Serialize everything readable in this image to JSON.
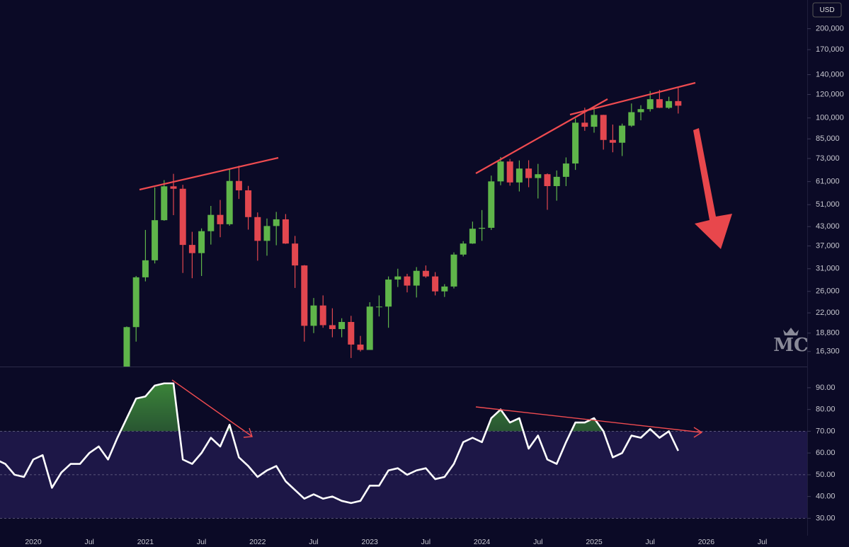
{
  "chart_data": [
    {
      "type": "candlestick",
      "unit": "USD",
      "watermark": "MC",
      "log_scale": true,
      "up_color": "#5fb54a",
      "down_color": "#e2474f",
      "ylim": [
        14500,
        250000
      ],
      "yticks": [
        {
          "value": 200000,
          "label": "200,000"
        },
        {
          "value": 170000,
          "label": "170,000"
        },
        {
          "value": 140000,
          "label": "140,000"
        },
        {
          "value": 120000,
          "label": "120,000"
        },
        {
          "value": 100000,
          "label": "100,000"
        },
        {
          "value": 85000,
          "label": "85,000"
        },
        {
          "value": 73000,
          "label": "73,000"
        },
        {
          "value": 61000,
          "label": "61,000"
        },
        {
          "value": 51000,
          "label": "51,000"
        },
        {
          "value": 43000,
          "label": "43,000"
        },
        {
          "value": 37000,
          "label": "37,000"
        },
        {
          "value": 31000,
          "label": "31,000"
        },
        {
          "value": 26000,
          "label": "26,000"
        },
        {
          "value": 22000,
          "label": "22,000"
        },
        {
          "value": 18800,
          "label": "18,800"
        },
        {
          "value": 16300,
          "label": "16,300"
        }
      ],
      "x": [
        "2020-11",
        "2020-12",
        "2021-01",
        "2021-02",
        "2021-03",
        "2021-04",
        "2021-05",
        "2021-06",
        "2021-07",
        "2021-08",
        "2021-09",
        "2021-10",
        "2021-11",
        "2021-12",
        "2022-01",
        "2022-02",
        "2022-03",
        "2022-04",
        "2022-05",
        "2022-06",
        "2022-07",
        "2022-08",
        "2022-09",
        "2022-10",
        "2022-11",
        "2022-12",
        "2023-01",
        "2023-02",
        "2023-03",
        "2023-04",
        "2023-05",
        "2023-06",
        "2023-07",
        "2023-08",
        "2023-09",
        "2023-10",
        "2023-11",
        "2023-12",
        "2024-01",
        "2024-02",
        "2024-03",
        "2024-04",
        "2024-05",
        "2024-06",
        "2024-07",
        "2024-08",
        "2024-09",
        "2024-10",
        "2024-11",
        "2024-12",
        "2025-01",
        "2025-02",
        "2025-03",
        "2025-04",
        "2025-05",
        "2025-06",
        "2025-07",
        "2025-08",
        "2025-09",
        "2025-10"
      ],
      "open": [
        13800,
        19700,
        29000,
        33100,
        45200,
        58800,
        57700,
        37300,
        35000,
        41500,
        47100,
        43800,
        61300,
        57000,
        46300,
        38500,
        43200,
        45500,
        37700,
        31800,
        19900,
        23300,
        20000,
        19400,
        20500,
        17200,
        16500,
        23100,
        23100,
        28500,
        29200,
        27200,
        30500,
        29200,
        26000,
        27000,
        34600,
        37700,
        42300,
        42600,
        61100,
        71300,
        60600,
        67500,
        62700,
        64600,
        58900,
        63300,
        70200,
        96400,
        93400,
        102400,
        84300,
        82500,
        94200,
        104600,
        107100,
        115700,
        108200,
        114000
      ],
      "high": [
        19800,
        29300,
        41900,
        58300,
        61700,
        64800,
        59500,
        41300,
        42400,
        50500,
        52900,
        67000,
        69000,
        59000,
        48000,
        45800,
        48200,
        47400,
        40000,
        31900,
        24700,
        25200,
        22800,
        21100,
        21500,
        18400,
        23900,
        25200,
        29200,
        31000,
        29800,
        31400,
        31800,
        30200,
        27500,
        35200,
        38400,
        44700,
        48900,
        63900,
        73800,
        72700,
        71900,
        72000,
        70000,
        65000,
        66500,
        73600,
        99600,
        108300,
        109600,
        102500,
        95000,
        95700,
        111900,
        110400,
        123200,
        124400,
        117900,
        126200
      ],
      "low": [
        13200,
        17600,
        28100,
        32300,
        45000,
        47000,
        30000,
        28800,
        29300,
        37400,
        39600,
        43300,
        53300,
        42000,
        33000,
        34300,
        37200,
        37600,
        26700,
        17600,
        18800,
        19600,
        18200,
        18200,
        15500,
        16300,
        16500,
        21400,
        19600,
        26900,
        25800,
        24800,
        28900,
        25200,
        24900,
        26600,
        34100,
        37600,
        38500,
        41900,
        59300,
        59100,
        56500,
        58400,
        53500,
        49000,
        52600,
        58900,
        66800,
        90500,
        89200,
        78200,
        76600,
        74400,
        93300,
        98200,
        105100,
        108000,
        107300,
        103500
      ],
      "close": [
        19700,
        29000,
        33100,
        45200,
        58800,
        57700,
        37300,
        35000,
        41500,
        47100,
        43800,
        61300,
        57000,
        46300,
        38500,
        43200,
        45500,
        37700,
        31800,
        19900,
        23300,
        20000,
        19400,
        20500,
        17200,
        16500,
        23100,
        23100,
        28500,
        29200,
        27200,
        30500,
        29200,
        26000,
        27000,
        34600,
        37700,
        42300,
        42600,
        61100,
        71300,
        60600,
        67500,
        62700,
        64600,
        58900,
        63300,
        70200,
        96400,
        93400,
        102400,
        84300,
        82500,
        94200,
        104600,
        107100,
        115700,
        108200,
        114000,
        110000
      ]
    },
    {
      "type": "line",
      "color": "#ffffff",
      "fill_color": "#3d8a3a",
      "ylim": [
        22,
        99.4
      ],
      "yticks": [
        {
          "value": 90,
          "label": "90.00"
        },
        {
          "value": 80,
          "label": "80.00"
        },
        {
          "value": 70,
          "label": "70.00"
        },
        {
          "value": 60,
          "label": "60.00"
        },
        {
          "value": 50,
          "label": "50.00"
        },
        {
          "value": 40,
          "label": "40.00"
        },
        {
          "value": 30,
          "label": "30.00"
        }
      ],
      "bands": [
        30,
        70
      ],
      "midline": 50,
      "x": [
        "2019-09",
        "2019-10",
        "2019-11",
        "2019-12",
        "2020-01",
        "2020-02",
        "2020-03",
        "2020-04",
        "2020-05",
        "2020-06",
        "2020-07",
        "2020-08",
        "2020-09",
        "2020-10",
        "2020-11",
        "2020-12",
        "2021-01",
        "2021-02",
        "2021-03",
        "2021-04",
        "2021-05",
        "2021-06",
        "2021-07",
        "2021-08",
        "2021-09",
        "2021-10",
        "2021-11",
        "2021-12",
        "2022-01",
        "2022-02",
        "2022-03",
        "2022-04",
        "2022-05",
        "2022-06",
        "2022-07",
        "2022-08",
        "2022-09",
        "2022-10",
        "2022-11",
        "2022-12",
        "2023-01",
        "2023-02",
        "2023-03",
        "2023-04",
        "2023-05",
        "2023-06",
        "2023-07",
        "2023-08",
        "2023-09",
        "2023-10",
        "2023-11",
        "2023-12",
        "2024-01",
        "2024-02",
        "2024-03",
        "2024-04",
        "2024-05",
        "2024-06",
        "2024-07",
        "2024-08",
        "2024-09",
        "2024-10",
        "2024-11",
        "2024-12",
        "2025-01",
        "2025-02",
        "2025-03",
        "2025-04",
        "2025-05",
        "2025-06",
        "2025-07",
        "2025-08",
        "2025-09",
        "2025-10"
      ],
      "values": [
        57,
        55,
        50,
        49,
        57,
        59,
        44,
        51,
        55,
        55,
        60,
        63,
        57,
        67,
        76,
        85,
        86,
        91,
        92,
        92,
        57,
        55,
        60,
        67,
        63,
        73,
        58,
        54,
        49,
        52,
        54,
        47,
        43,
        39,
        41,
        39,
        40,
        38,
        37,
        38,
        45,
        45,
        52,
        53,
        50,
        52,
        53,
        48,
        49,
        55,
        65,
        67,
        65,
        76,
        80,
        74,
        76,
        62,
        68,
        57,
        55,
        65,
        74,
        74,
        76,
        70,
        58,
        60,
        68,
        67,
        71,
        67,
        70,
        61
      ],
      "xticks": [
        {
          "value": "2020-01",
          "label": "2020"
        },
        {
          "value": "2020-07",
          "label": "Jul"
        },
        {
          "value": "2021-01",
          "label": "2021"
        },
        {
          "value": "2021-07",
          "label": "Jul"
        },
        {
          "value": "2022-01",
          "label": "2022"
        },
        {
          "value": "2022-07",
          "label": "Jul"
        },
        {
          "value": "2023-01",
          "label": "2023"
        },
        {
          "value": "2023-07",
          "label": "Jul"
        },
        {
          "value": "2024-01",
          "label": "2024"
        },
        {
          "value": "2024-07",
          "label": "Jul"
        },
        {
          "value": "2025-01",
          "label": "2025"
        },
        {
          "value": "2025-07",
          "label": "Jul"
        },
        {
          "value": "2026-01",
          "label": "2026"
        },
        {
          "value": "2026-07",
          "label": "Jul"
        }
      ]
    }
  ]
}
